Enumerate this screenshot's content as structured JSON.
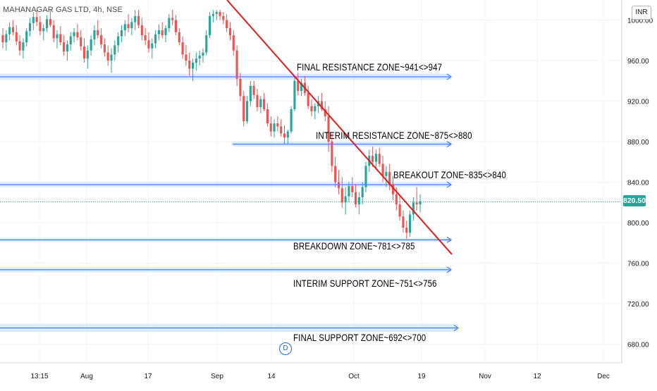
{
  "header": {
    "symbol_title": "MAHANAGAR GAS LTD, 4h, NSE",
    "currency": "INR",
    "last_price": "820.50",
    "event_marker": "D"
  },
  "colors": {
    "bull": "#26a69a",
    "bear": "#ef5350",
    "trendline": "#e31919",
    "zone_line": "#2962ff",
    "zone_band": "#bbdefb",
    "grid": "#f0f3fa",
    "axis_text": "#131722",
    "price_tag": "#26a69a"
  },
  "chart_data": {
    "type": "candlestick",
    "title": "MAHANAGAR GAS LTD, 4h, NSE",
    "ylim": [
      655,
      1010
    ],
    "y_ticks": [
      "680.00",
      "720.00",
      "760.00",
      "800.00",
      "840.00",
      "880.00",
      "920.00",
      "960.00",
      "1000.00"
    ],
    "x_ticks": [
      "13:15",
      "Aug",
      "17",
      "Sep",
      "14",
      "Oct",
      "19",
      "Nov",
      "12",
      "Dec"
    ],
    "last_price": 820.5,
    "candles": [
      [
        985,
        992,
        972,
        978
      ],
      [
        978,
        990,
        970,
        986
      ],
      [
        986,
        998,
        980,
        993
      ],
      [
        993,
        1000,
        985,
        988
      ],
      [
        988,
        995,
        975,
        979
      ],
      [
        979,
        985,
        965,
        970
      ],
      [
        970,
        982,
        962,
        978
      ],
      [
        978,
        992,
        974,
        989
      ],
      [
        989,
        1002,
        984,
        997
      ],
      [
        997,
        1008,
        990,
        1003
      ],
      [
        1003,
        1010,
        994,
        998
      ],
      [
        998,
        1004,
        985,
        989
      ],
      [
        989,
        996,
        980,
        992
      ],
      [
        992,
        1005,
        988,
        1001
      ],
      [
        1001,
        1010,
        993,
        995
      ],
      [
        995,
        1000,
        978,
        982
      ],
      [
        982,
        990,
        972,
        986
      ],
      [
        986,
        994,
        975,
        978
      ],
      [
        978,
        985,
        965,
        969
      ],
      [
        969,
        980,
        960,
        976
      ],
      [
        976,
        988,
        970,
        984
      ],
      [
        984,
        992,
        978,
        988
      ],
      [
        988,
        996,
        980,
        983
      ],
      [
        983,
        990,
        970,
        974
      ],
      [
        974,
        982,
        958,
        962
      ],
      [
        962,
        975,
        952,
        970
      ],
      [
        970,
        985,
        965,
        981
      ],
      [
        981,
        995,
        975,
        990
      ],
      [
        990,
        1000,
        982,
        985
      ],
      [
        985,
        992,
        972,
        976
      ],
      [
        976,
        982,
        964,
        968
      ],
      [
        968,
        975,
        955,
        960
      ],
      [
        960,
        972,
        948,
        966
      ],
      [
        966,
        980,
        960,
        975
      ],
      [
        975,
        988,
        968,
        984
      ],
      [
        984,
        995,
        978,
        990
      ],
      [
        990,
        1000,
        984,
        996
      ],
      [
        996,
        1006,
        988,
        992
      ],
      [
        992,
        1002,
        985,
        998
      ],
      [
        998,
        1010,
        990,
        1004
      ],
      [
        1004,
        1010,
        992,
        995
      ],
      [
        995,
        1002,
        980,
        985
      ],
      [
        985,
        992,
        975,
        980
      ],
      [
        980,
        988,
        968,
        972
      ],
      [
        972,
        982,
        962,
        977
      ],
      [
        977,
        990,
        972,
        986
      ],
      [
        986,
        996,
        980,
        990
      ],
      [
        990,
        998,
        982,
        985
      ],
      [
        985,
        995,
        978,
        992
      ],
      [
        992,
        1006,
        988,
        1002
      ],
      [
        1002,
        1010,
        995,
        1000
      ],
      [
        1000,
        1005,
        985,
        988
      ],
      [
        988,
        992,
        975,
        978
      ],
      [
        978,
        984,
        962,
        966
      ],
      [
        966,
        975,
        955,
        960
      ],
      [
        960,
        968,
        945,
        952
      ],
      [
        952,
        962,
        940,
        958
      ],
      [
        958,
        968,
        950,
        962
      ],
      [
        962,
        970,
        955,
        965
      ],
      [
        965,
        972,
        958,
        968
      ],
      [
        968,
        990,
        965,
        985
      ],
      [
        985,
        1008,
        982,
        1004
      ],
      [
        1004,
        1010,
        998,
        1006
      ],
      [
        1006,
        1010,
        1000,
        1008
      ],
      [
        1008,
        1010,
        1000,
        1004
      ],
      [
        1004,
        1008,
        996,
        1000
      ],
      [
        1000,
        1006,
        988,
        992
      ],
      [
        992,
        998,
        980,
        985
      ],
      [
        985,
        990,
        965,
        970
      ],
      [
        970,
        975,
        935,
        942
      ],
      [
        942,
        948,
        920,
        925
      ],
      [
        925,
        930,
        895,
        900
      ],
      [
        900,
        925,
        898,
        920
      ],
      [
        920,
        940,
        915,
        935
      ],
      [
        935,
        940,
        922,
        926
      ],
      [
        926,
        932,
        910,
        914
      ],
      [
        914,
        925,
        908,
        922
      ],
      [
        922,
        928,
        910,
        912
      ],
      [
        912,
        918,
        895,
        898
      ],
      [
        898,
        905,
        885,
        890
      ],
      [
        890,
        902,
        884,
        898
      ],
      [
        898,
        905,
        890,
        895
      ],
      [
        895,
        902,
        885,
        888
      ],
      [
        888,
        896,
        878,
        884
      ],
      [
        884,
        892,
        878,
        890
      ],
      [
        890,
        915,
        888,
        912
      ],
      [
        912,
        945,
        910,
        940
      ],
      [
        940,
        948,
        926,
        930
      ],
      [
        930,
        942,
        925,
        938
      ],
      [
        938,
        945,
        925,
        928
      ],
      [
        928,
        935,
        912,
        915
      ],
      [
        915,
        922,
        905,
        910
      ],
      [
        910,
        918,
        902,
        915
      ],
      [
        915,
        925,
        908,
        920
      ],
      [
        920,
        928,
        910,
        912
      ],
      [
        912,
        920,
        900,
        905
      ],
      [
        905,
        915,
        870,
        880
      ],
      [
        880,
        888,
        850,
        856
      ],
      [
        856,
        865,
        835,
        840
      ],
      [
        840,
        852,
        828,
        834
      ],
      [
        834,
        845,
        815,
        820
      ],
      [
        820,
        835,
        808,
        826
      ],
      [
        826,
        840,
        820,
        836
      ],
      [
        836,
        845,
        825,
        830
      ],
      [
        830,
        838,
        815,
        818
      ],
      [
        818,
        830,
        808,
        825
      ],
      [
        825,
        840,
        818,
        835
      ],
      [
        835,
        860,
        830,
        856
      ],
      [
        856,
        872,
        850,
        866
      ],
      [
        866,
        875,
        855,
        860
      ],
      [
        860,
        872,
        852,
        868
      ],
      [
        868,
        874,
        855,
        858
      ],
      [
        858,
        866,
        840,
        846
      ],
      [
        846,
        856,
        835,
        850
      ],
      [
        850,
        858,
        832,
        838
      ],
      [
        838,
        846,
        822,
        828
      ],
      [
        828,
        835,
        812,
        818
      ],
      [
        818,
        826,
        802,
        806
      ],
      [
        806,
        812,
        790,
        795
      ],
      [
        795,
        802,
        784,
        790
      ],
      [
        790,
        812,
        786,
        808
      ],
      [
        808,
        825,
        802,
        820
      ],
      [
        820,
        835,
        812,
        818
      ],
      [
        818,
        828,
        810,
        821
      ]
    ],
    "trendline": {
      "from": {
        "x_label": "Sep",
        "y": 1010
      },
      "to": {
        "x_label": "after 19",
        "y": 770
      }
    },
    "zones": [
      {
        "label": "FINAL RESISTANCE ZONE~941<>947",
        "low": 941,
        "high": 947
      },
      {
        "label": "INTERIM RESISTANCE ZONE~875<>880",
        "low": 875,
        "high": 880
      },
      {
        "label": "BREAKOUT ZONE~835<>840",
        "low": 835,
        "high": 840
      },
      {
        "label": "BREAKDOWN ZONE~781<>785",
        "low": 781,
        "high": 785
      },
      {
        "label": "INTERIM SUPPORT ZONE~751<>756",
        "low": 751,
        "high": 756
      },
      {
        "label": "FINAL SUPPORT ZONE~692<>700",
        "low": 692,
        "high": 700
      }
    ]
  }
}
